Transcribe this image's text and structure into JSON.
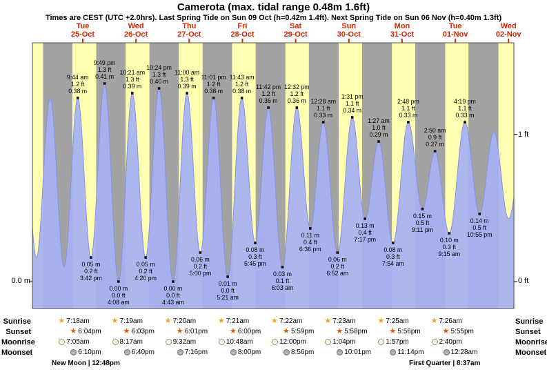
{
  "header": {
    "title": "Camerota (max. tidal range 0.48m 1.6ft)",
    "subtitle": "Times are CEST (UTC +2.0hrs). Last Spring Tide on Sun 09 Oct (h=0.42m 1.4ft). Next Spring Tide on Sun 06 Nov (h=0.40m 1.3ft)"
  },
  "axis": {
    "left_zero": "0.0 m",
    "right_one_ft": "1 ft",
    "right_zero_ft": "0 ft"
  },
  "colors": {
    "day_band": "#ffffb2",
    "night_band": "#a3a3a3",
    "tide_fill": "#a7b0f3",
    "tide_stroke": "#8690e6",
    "date_red": "#d42600",
    "annotation_text": "#000000",
    "sunrise_star": "#e8a516",
    "sunset_star": "#e2590a",
    "moonrise_fill": "#ffffd8",
    "moonset_fill": "#b2b2b2"
  },
  "chart_data": {
    "type": "area",
    "x_unit": "hours since Tue 25-Oct 00:00",
    "x_range": [
      -10.7,
      206.4
    ],
    "y_unit": "m",
    "y_range": [
      0,
      0.48
    ],
    "days": [
      {
        "name": "Tue",
        "date": "25-Oct"
      },
      {
        "name": "Wed",
        "date": "26-Oct"
      },
      {
        "name": "Thu",
        "date": "27-Oct"
      },
      {
        "name": "Fri",
        "date": "28-Oct"
      },
      {
        "name": "Sat",
        "date": "29-Oct"
      },
      {
        "name": "Sun",
        "date": "30-Oct"
      },
      {
        "name": "Mon",
        "date": "31-Oct"
      },
      {
        "name": "Tue",
        "date": "01-Nov"
      },
      {
        "name": "Wed",
        "date": "02-Nov"
      }
    ],
    "daylight_bands": [
      [
        -10.7,
        -5.92
      ],
      [
        7.3,
        18.07
      ],
      [
        31.32,
        42.05
      ],
      [
        55.33,
        66.02
      ],
      [
        79.35,
        90.0
      ],
      [
        103.37,
        113.98
      ],
      [
        127.38,
        137.97
      ],
      [
        151.42,
        161.93
      ],
      [
        175.43,
        185.92
      ],
      [
        199.45,
        206.4
      ]
    ],
    "tide_events": [
      {
        "kind": "high",
        "t": 9.73,
        "h": 0.38,
        "lines": [
          "9:44 am",
          "1.2 ft",
          "0.38 m"
        ]
      },
      {
        "kind": "low",
        "t": 15.7,
        "h": 0.05,
        "lines": [
          "0.05 m",
          "0.2 ft",
          "3:42 pm"
        ]
      },
      {
        "kind": "high",
        "t": 21.82,
        "h": 0.41,
        "lines": [
          "9:49 pm",
          "1.3 ft",
          "0.41 m"
        ]
      },
      {
        "kind": "low",
        "t": 28.13,
        "h": 0.0,
        "lines": [
          "0.00 m",
          "0.0 ft",
          "4:08 am"
        ]
      },
      {
        "kind": "high",
        "t": 34.35,
        "h": 0.39,
        "lines": [
          "10:21 am",
          "1.3 ft",
          "0.39 m"
        ]
      },
      {
        "kind": "low",
        "t": 40.33,
        "h": 0.05,
        "lines": [
          "0.05 m",
          "0.2 ft",
          "4:20 pm"
        ]
      },
      {
        "kind": "high",
        "t": 46.4,
        "h": 0.4,
        "lines": [
          "10:24 pm",
          "1.3 ft",
          "0.40 m"
        ]
      },
      {
        "kind": "low",
        "t": 52.72,
        "h": 0.0,
        "lines": [
          "0.00 m",
          "0.0 ft",
          "4:43 am"
        ]
      },
      {
        "kind": "high",
        "t": 59.0,
        "h": 0.39,
        "lines": [
          "11:00 am",
          "1.3 ft",
          "0.39 m"
        ]
      },
      {
        "kind": "low",
        "t": 65.0,
        "h": 0.06,
        "lines": [
          "0.06 m",
          "0.2 ft",
          "5:00 pm"
        ]
      },
      {
        "kind": "high",
        "t": 71.02,
        "h": 0.38,
        "lines": [
          "11:01 pm",
          "1.2 ft",
          "0.38 m"
        ]
      },
      {
        "kind": "low",
        "t": 77.35,
        "h": 0.01,
        "lines": [
          "0.01 m",
          "0.0 ft",
          "5:21 am"
        ]
      },
      {
        "kind": "high",
        "t": 83.72,
        "h": 0.38,
        "lines": [
          "11:43 am",
          "1.2 ft",
          "0.38 m"
        ]
      },
      {
        "kind": "low",
        "t": 89.75,
        "h": 0.08,
        "lines": [
          "0.08 m",
          "0.3 ft",
          "5:45 pm"
        ]
      },
      {
        "kind": "high",
        "t": 95.7,
        "h": 0.36,
        "lines": [
          "11:42 pm",
          "1.2 ft",
          "0.36 m"
        ]
      },
      {
        "kind": "low",
        "t": 102.05,
        "h": 0.03,
        "lines": [
          "0.03 m",
          "0.1 ft",
          "6:03 am"
        ]
      },
      {
        "kind": "high",
        "t": 108.53,
        "h": 0.36,
        "lines": [
          "12:32 pm",
          "1.2 ft",
          "0.36 m"
        ]
      },
      {
        "kind": "low",
        "t": 114.6,
        "h": 0.11,
        "lines": [
          "0.11 m",
          "0.4 ft",
          "6:36 pm"
        ]
      },
      {
        "kind": "high",
        "t": 120.47,
        "h": 0.33,
        "lines": [
          "12:28 am",
          "1.1 ft",
          "0.33 m"
        ]
      },
      {
        "kind": "low",
        "t": 126.87,
        "h": 0.06,
        "lines": [
          "0.06 m",
          "0.2 ft",
          "6:52 am"
        ]
      },
      {
        "kind": "high",
        "t": 133.52,
        "h": 0.34,
        "lines": [
          "1:31 pm",
          "1.1 ft",
          "0.34 m"
        ]
      },
      {
        "kind": "low",
        "t": 139.28,
        "h": 0.13,
        "lines": [
          "0.13 m",
          "0.4 ft",
          "7:17 pm"
        ]
      },
      {
        "kind": "high",
        "t": 145.45,
        "h": 0.29,
        "lines": [
          "1:27 am",
          "1.0 ft",
          "0.29 m"
        ]
      },
      {
        "kind": "low",
        "t": 151.9,
        "h": 0.08,
        "lines": [
          "0.08 m",
          "0.3 ft",
          "7:54 am"
        ]
      },
      {
        "kind": "high",
        "t": 158.8,
        "h": 0.33,
        "lines": [
          "2:48 pm",
          "1.1 ft",
          "0.33 m"
        ]
      },
      {
        "kind": "low",
        "t": 165.18,
        "h": 0.15,
        "lines": [
          "0.15 m",
          "0.5 ft",
          "9:11 pm"
        ]
      },
      {
        "kind": "high",
        "t": 170.83,
        "h": 0.27,
        "lines": [
          "2:50 am",
          "0.9 ft",
          "0.27 m"
        ]
      },
      {
        "kind": "low",
        "t": 177.25,
        "h": 0.1,
        "lines": [
          "0.10 m",
          "0.3 ft",
          "9:15 am"
        ]
      },
      {
        "kind": "high",
        "t": 184.32,
        "h": 0.33,
        "lines": [
          "4:19 pm",
          "1.1 ft",
          "0.33 m"
        ]
      },
      {
        "kind": "low",
        "t": 190.92,
        "h": 0.14,
        "lines": [
          "0.14 m",
          "0.5 ft",
          "10:55 pm"
        ]
      }
    ],
    "edge_events": [
      {
        "t": -14.9,
        "h": 0.36
      },
      {
        "t": -8.9,
        "h": 0.05
      },
      {
        "t": -2.7,
        "h": 0.38
      },
      {
        "t": 3.6,
        "h": 0.03
      },
      {
        "t": 197.4,
        "h": 0.31
      },
      {
        "t": 204.0,
        "h": 0.13
      },
      {
        "t": 211.0,
        "h": 0.3
      }
    ]
  },
  "almanac": {
    "rows": [
      {
        "label": "Sunrise",
        "times": [
          "7:18am",
          "7:19am",
          "7:20am",
          "7:21am",
          "7:22am",
          "7:23am",
          "7:25am",
          "7:26am"
        ]
      },
      {
        "label": "Sunset",
        "times": [
          "6:04pm",
          "6:03pm",
          "6:01pm",
          "6:00pm",
          "5:59pm",
          "5:58pm",
          "5:56pm",
          "5:55pm"
        ]
      },
      {
        "label": "Moonrise",
        "times": [
          "7:05am",
          "8:17am",
          "9:32am",
          "10:48am",
          "12:00pm",
          "1:04pm",
          "1:57pm",
          "2:40pm"
        ]
      },
      {
        "label": "Moonset",
        "times": [
          "6:10pm",
          "6:40pm",
          "7:16pm",
          "8:00pm",
          "8:56pm",
          "10:01pm",
          "11:14pm",
          "12:28am"
        ]
      }
    ],
    "moon_phases": {
      "left": "New Moon | 12:48pm",
      "right": "First Quarter | 8:37am"
    }
  }
}
